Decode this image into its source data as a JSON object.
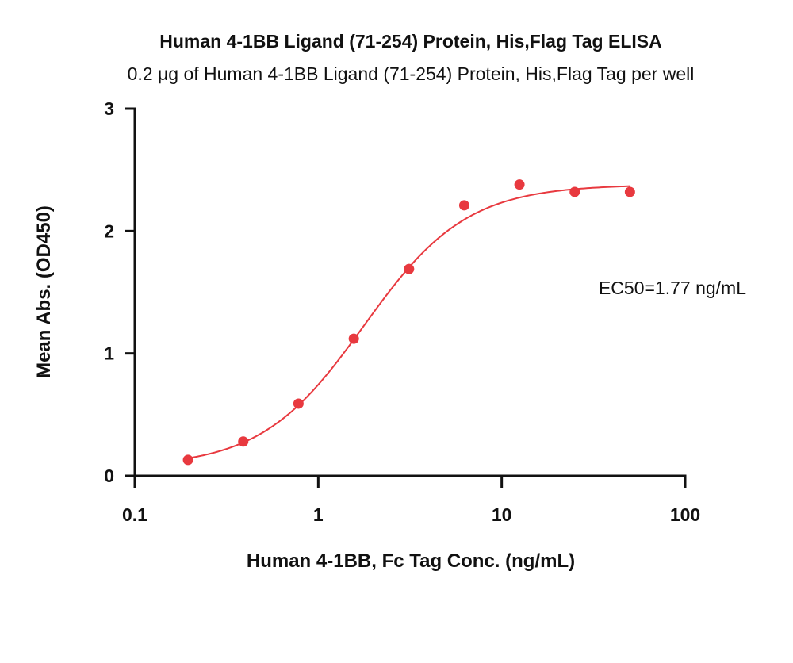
{
  "chart_data": {
    "type": "scatter",
    "title": "Human 4-1BB Ligand (71-254) Protein, His,Flag Tag ELISA",
    "subtitle": "0.2 μg of Human 4-1BB Ligand (71-254) Protein, His,Flag Tag per well",
    "xlabel": "Human 4-1BB, Fc Tag Conc. (ng/mL)",
    "ylabel": "Mean Abs. (OD450)",
    "x_scale": "log",
    "xlim": [
      0.1,
      100
    ],
    "ylim": [
      0,
      3
    ],
    "x_ticks": [
      "0.1",
      "1",
      "10",
      "100"
    ],
    "y_ticks": [
      "0",
      "1",
      "2",
      "3"
    ],
    "grid": false,
    "annotation": "EC50=1.77 ng/mL",
    "colors": {
      "series": "#e8393f",
      "axis": "#111111"
    },
    "series": [
      {
        "x": [
          0.195,
          0.39,
          0.78,
          1.5625,
          3.125,
          6.25,
          12.5,
          25,
          50
        ],
        "y": [
          0.13,
          0.28,
          0.59,
          1.12,
          1.69,
          2.21,
          2.38,
          2.32,
          2.32
        ]
      }
    ],
    "fit": {
      "type": "4PL",
      "x_range": [
        0.195,
        50
      ],
      "bottom": 0.07,
      "top": 2.38,
      "ec50": 1.77,
      "hill": 1.55
    }
  }
}
